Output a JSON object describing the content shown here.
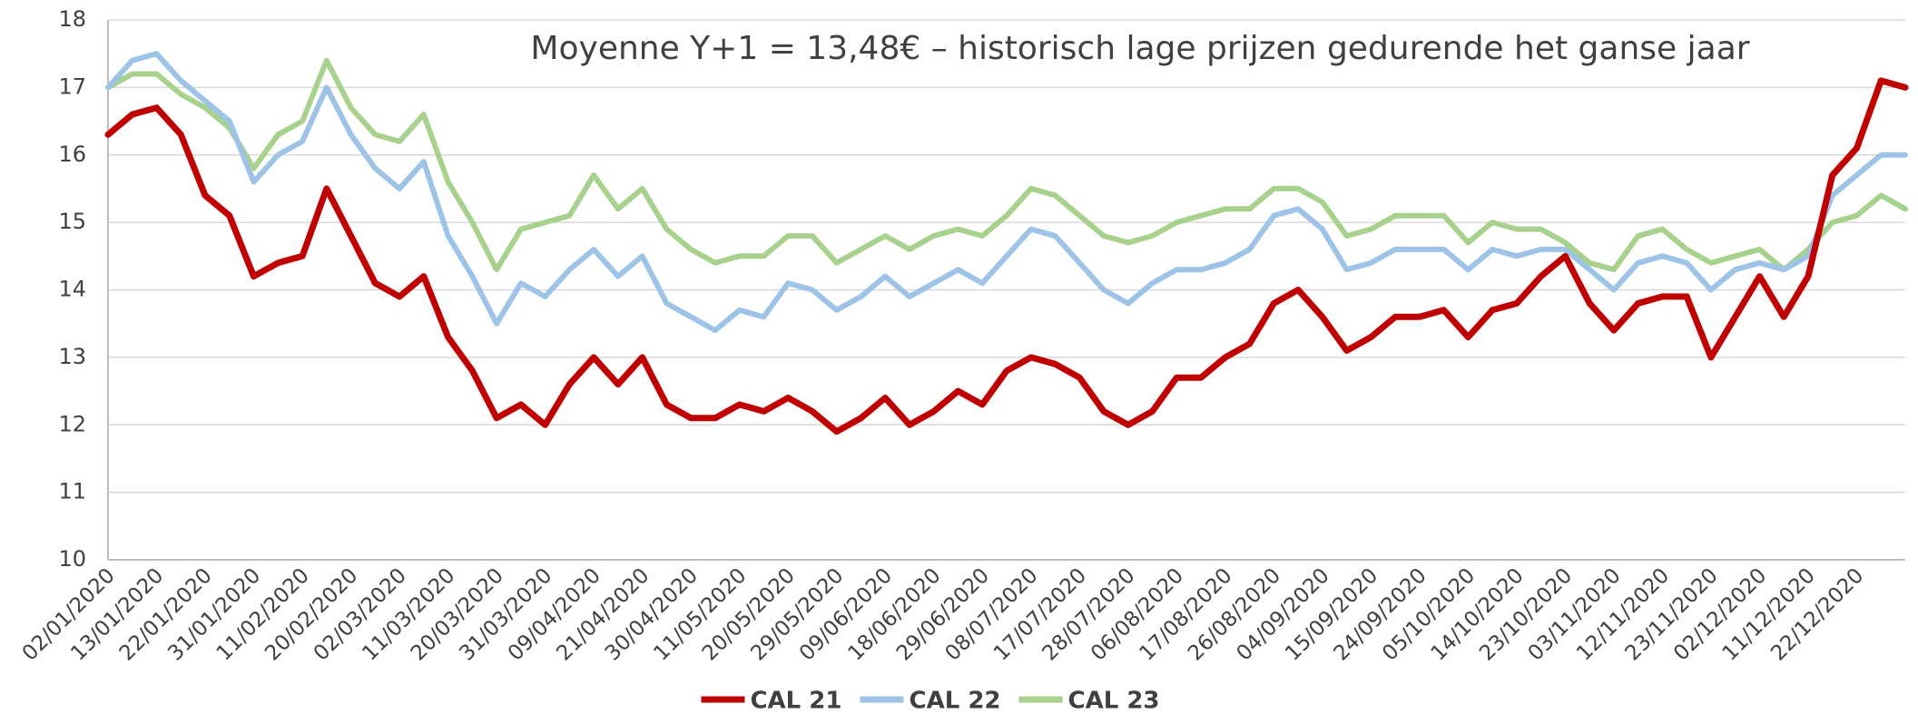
{
  "chart_data": {
    "type": "line",
    "title": "Moyenne Y+1 = 13,48€ – historisch lage prijzen gedurende het ganse jaar",
    "categories": [
      "02/01/2020",
      null,
      "13/01/2020",
      null,
      "22/01/2020",
      null,
      "31/01/2020",
      null,
      "11/02/2020",
      null,
      "20/02/2020",
      null,
      "02/03/2020",
      null,
      "11/03/2020",
      null,
      "20/03/2020",
      null,
      "31/03/2020",
      null,
      "09/04/2020",
      null,
      "21/04/2020",
      null,
      "30/04/2020",
      null,
      "11/05/2020",
      null,
      "20/05/2020",
      null,
      "29/05/2020",
      null,
      "09/06/2020",
      null,
      "18/06/2020",
      null,
      "29/06/2020",
      null,
      "08/07/2020",
      null,
      "17/07/2020",
      null,
      "28/07/2020",
      null,
      "06/08/2020",
      null,
      "17/08/2020",
      null,
      "26/08/2020",
      null,
      "04/09/2020",
      null,
      "15/09/2020",
      null,
      "24/09/2020",
      null,
      "05/10/2020",
      null,
      "14/10/2020",
      null,
      "23/10/2020",
      null,
      "03/11/2020",
      null,
      "12/11/2020",
      null,
      "23/11/2020",
      null,
      "02/12/2020",
      null,
      "11/12/2020",
      null,
      "22/12/2020",
      null,
      null
    ],
    "series": [
      {
        "name": "CAL 21",
        "color": "#c00000",
        "values": [
          16.3,
          16.6,
          16.7,
          16.3,
          15.4,
          15.1,
          14.2,
          14.4,
          14.5,
          15.5,
          14.8,
          14.1,
          13.9,
          14.2,
          13.3,
          12.8,
          12.1,
          12.3,
          12.0,
          12.6,
          13.0,
          12.6,
          13.0,
          12.3,
          12.1,
          12.1,
          12.3,
          12.2,
          12.4,
          12.2,
          11.9,
          12.1,
          12.4,
          12.0,
          12.2,
          12.5,
          12.3,
          12.8,
          13.0,
          12.9,
          12.7,
          12.2,
          12.0,
          12.2,
          12.7,
          12.7,
          13.0,
          13.2,
          13.8,
          14.0,
          13.6,
          13.1,
          13.3,
          13.6,
          13.6,
          13.7,
          13.3,
          13.7,
          13.8,
          14.2,
          14.5,
          13.8,
          13.4,
          13.8,
          13.9,
          13.9,
          13.0,
          13.6,
          14.2,
          13.6,
          14.2,
          15.7,
          16.1,
          17.1,
          17.0
        ]
      },
      {
        "name": "CAL 22",
        "color": "#9dc3e6",
        "values": [
          17.0,
          17.4,
          17.5,
          17.1,
          16.8,
          16.5,
          15.6,
          16.0,
          16.2,
          17.0,
          16.3,
          15.8,
          15.5,
          15.9,
          14.8,
          14.2,
          13.5,
          14.1,
          13.9,
          14.3,
          14.6,
          14.2,
          14.5,
          13.8,
          13.6,
          13.4,
          13.7,
          13.6,
          14.1,
          14.0,
          13.7,
          13.9,
          14.2,
          13.9,
          14.1,
          14.3,
          14.1,
          14.5,
          14.9,
          14.8,
          14.4,
          14.0,
          13.8,
          14.1,
          14.3,
          14.3,
          14.4,
          14.6,
          15.1,
          15.2,
          14.9,
          14.3,
          14.4,
          14.6,
          14.6,
          14.6,
          14.3,
          14.6,
          14.5,
          14.6,
          14.6,
          14.3,
          14.0,
          14.4,
          14.5,
          14.4,
          14.0,
          14.3,
          14.4,
          14.3,
          14.5,
          15.4,
          15.7,
          16.0,
          16.0
        ]
      },
      {
        "name": "CAL 23",
        "color": "#a9d18e",
        "values": [
          17.0,
          17.2,
          17.2,
          16.9,
          16.7,
          16.4,
          15.8,
          16.3,
          16.5,
          17.4,
          16.7,
          16.3,
          16.2,
          16.6,
          15.6,
          15.0,
          14.3,
          14.9,
          15.0,
          15.1,
          15.7,
          15.2,
          15.5,
          14.9,
          14.6,
          14.4,
          14.5,
          14.5,
          14.8,
          14.8,
          14.4,
          14.6,
          14.8,
          14.6,
          14.8,
          14.9,
          14.8,
          15.1,
          15.5,
          15.4,
          15.1,
          14.8,
          14.7,
          14.8,
          15.0,
          15.1,
          15.2,
          15.2,
          15.5,
          15.5,
          15.3,
          14.8,
          14.9,
          15.1,
          15.1,
          15.1,
          14.7,
          15.0,
          14.9,
          14.9,
          14.7,
          14.4,
          14.3,
          14.8,
          14.9,
          14.6,
          14.4,
          14.5,
          14.6,
          14.3,
          14.6,
          15.0,
          15.1,
          15.4,
          15.2
        ]
      }
    ],
    "ylim": [
      10,
      18
    ],
    "yticks": [
      10,
      11,
      12,
      13,
      14,
      15,
      16,
      17,
      18
    ],
    "grid": true,
    "legend": "bottom"
  }
}
